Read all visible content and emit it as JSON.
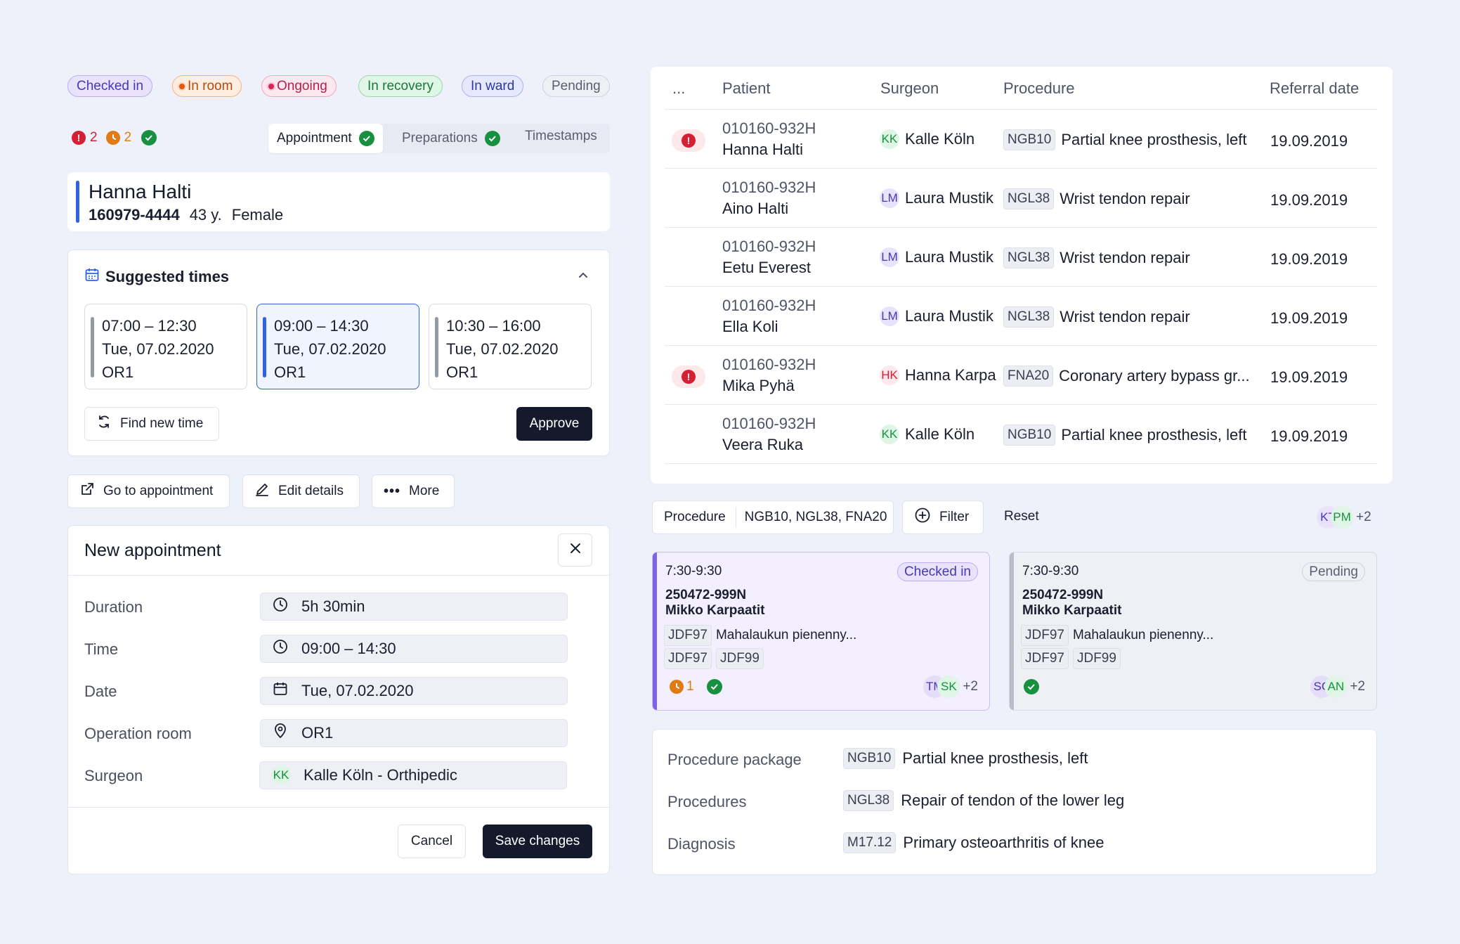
{
  "statuses": [
    {
      "label": "Checked in",
      "bg": "#e8e3fb",
      "border": "#b9aef0",
      "color": "#4b35b8"
    },
    {
      "label": "In room",
      "bg": "#feeee2",
      "border": "#f5b185",
      "color": "#b84a0c"
    },
    {
      "label": "Ongoing",
      "bg": "#fde8ef",
      "border": "#f3a6c0",
      "color": "#b81f4e"
    },
    {
      "label": "In recovery",
      "bg": "#e0f6e6",
      "border": "#9ad8ac",
      "color": "#187a36"
    },
    {
      "label": "In ward",
      "bg": "#e6e9fb",
      "border": "#aab3ef",
      "color": "#2c37a4"
    },
    {
      "label": "Pending",
      "bg": "#eef0f6",
      "border": "#cfd3de",
      "color": "#5a5f70"
    }
  ],
  "counters": {
    "alerts": "2",
    "pending": "2"
  },
  "tabs": {
    "appointment": "Appointment",
    "preparations": "Preparations",
    "timestamps": "Timestamps"
  },
  "patient": {
    "name": "Hanna Halti",
    "id": "160979-4444",
    "age": "43 y.",
    "gender": "Female"
  },
  "suggested": {
    "title": "Suggested times",
    "slots": [
      {
        "time": "07:00 – 12:30",
        "date": "Tue, 07.02.2020",
        "room": "OR1"
      },
      {
        "time": "09:00 – 14:30",
        "date": "Tue, 07.02.2020",
        "room": "OR1"
      },
      {
        "time": "10:30 – 16:00",
        "date": "Tue, 07.02.2020",
        "room": "OR1"
      }
    ],
    "find_new": "Find new time",
    "approve": "Approve"
  },
  "actions": {
    "go_to": "Go to appointment",
    "edit": "Edit details",
    "more": "More"
  },
  "new_appointment": {
    "title": "New appointment",
    "fields": {
      "duration_label": "Duration",
      "duration": "5h 30min",
      "time_label": "Time",
      "time": "09:00 – 14:30",
      "date_label": "Date",
      "date": "Tue, 07.02.2020",
      "room_label": "Operation room",
      "room": "OR1",
      "surgeon_label": "Surgeon",
      "surgeon_initials": "KK",
      "surgeon": "Kalle Köln - Orthipedic"
    },
    "cancel": "Cancel",
    "save": "Save changes"
  },
  "table": {
    "headers": {
      "more": "...",
      "patient": "Patient",
      "surgeon": "Surgeon",
      "procedure": "Procedure",
      "referral": "Referral date"
    },
    "rows": [
      {
        "id": "010160-932H",
        "name": "Hanna Halti",
        "initials": "KK",
        "surgeon": "Kalle Köln",
        "code": "NGB10",
        "procedure": "Partial knee prosthesis, left",
        "date": "19.09.2019"
      },
      {
        "id": "010160-932H",
        "name": "Aino Halti",
        "initials": "LM",
        "surgeon": "Laura Mustik",
        "code": "NGL38",
        "procedure": "Wrist tendon repair",
        "date": "19.09.2019"
      },
      {
        "id": "010160-932H",
        "name": "Eetu Everest",
        "initials": "LM",
        "surgeon": "Laura Mustik",
        "code": "NGL38",
        "procedure": "Wrist tendon repair",
        "date": "19.09.2019"
      },
      {
        "id": "010160-932H",
        "name": "Ella Koli",
        "initials": "LM",
        "surgeon": "Laura Mustik",
        "code": "NGL38",
        "procedure": "Wrist tendon repair",
        "date": "19.09.2019"
      },
      {
        "id": "010160-932H",
        "name": "Mika Pyhä",
        "initials": "HK",
        "surgeon": "Hanna Karpa",
        "code": "FNA20",
        "procedure": "Coronary artery bypass gr...",
        "date": "19.09.2019"
      },
      {
        "id": "010160-932H",
        "name": "Veera Ruka",
        "initials": "KK",
        "surgeon": "Kalle Köln",
        "code": "NGB10",
        "procedure": "Partial knee prosthesis, left",
        "date": "19.09.2019"
      }
    ]
  },
  "filterbar": {
    "label": "Procedure",
    "value": "NGB10, NGL38, FNA20",
    "filter": "Filter",
    "reset": "Reset",
    "avatar1": "KT",
    "avatar2": "PM",
    "extra": "+2"
  },
  "schedule": [
    {
      "time": "7:30-9:30",
      "status": "Checked in",
      "id": "250472-999N",
      "name": "Mikko Karpaatit",
      "code1": "JDF97",
      "desc": "Mahalaukun pienenny...",
      "code2": "JDF97",
      "code3": "JDF99",
      "pending_count": "1",
      "avatar1": "TM",
      "avatar2": "SK",
      "extra": "+2"
    },
    {
      "time": "7:30-9:30",
      "status": "Pending",
      "id": "250472-999N",
      "name": "Mikko Karpaatit",
      "code1": "JDF97",
      "desc": "Mahalaukun pienenny...",
      "code2": "JDF97",
      "code3": "JDF99",
      "avatar1": "SC",
      "avatar2": "AN",
      "extra": "+2"
    }
  ],
  "info": {
    "package_label": "Procedure package",
    "package_code": "NGB10",
    "package": "Partial knee prosthesis, left",
    "procedures_label": "Procedures",
    "procedures_code": "NGL38",
    "procedures": "Repair of tendon of the lower leg",
    "diagnosis_label": "Diagnosis",
    "diagnosis_code": "M17.12",
    "diagnosis": "Primary osteoarthritis of knee"
  },
  "colors": {
    "accent": "#2f63e3",
    "dark": "#141a2c",
    "danger": "#d71f32",
    "warning": "#e07a14",
    "success": "#17913f"
  }
}
